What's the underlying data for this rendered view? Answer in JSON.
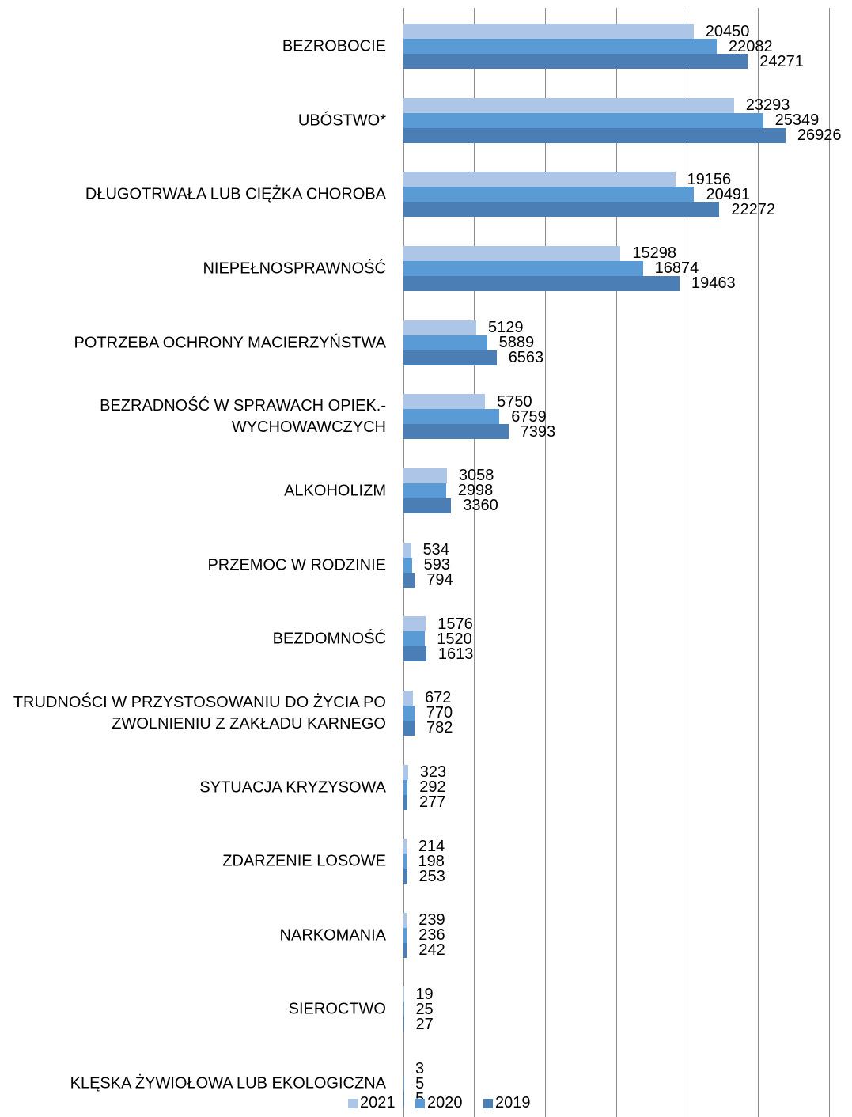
{
  "chart_data": {
    "type": "hbar",
    "categories": [
      "BEZROBOCIE",
      "UBÓSTWO*",
      "DŁUGOTRWAŁA LUB CIĘŻKA CHOROBA",
      "NIEPEŁNOSPRAWNOŚĆ",
      "POTRZEBA OCHRONY MACIERZYŃSTWA",
      "BEZRADNOŚĆ W SPRAWACH OPIEK.-WYCHOWAWCZYCH",
      "ALKOHOLIZM",
      "PRZEMOC W RODZINIE",
      "BEZDOMNOŚĆ",
      "TRUDNOŚCI W PRZYSTOSOWANIU DO ŻYCIA PO ZWOLNIENIU Z ZAKŁADU KARNEGO",
      "SYTUACJA KRYZYSOWA",
      "ZDARZENIE LOSOWE",
      "NARKOMANIA",
      "SIEROCTWO",
      "KLĘSKA ŻYWIOŁOWA LUB EKOLOGICZNA"
    ],
    "series": [
      {
        "name": "2021",
        "color": "#adc5e7",
        "values": [
          20450,
          23293,
          19156,
          15298,
          5129,
          5750,
          3058,
          534,
          1576,
          672,
          323,
          214,
          239,
          19,
          3
        ]
      },
      {
        "name": "2020",
        "color": "#5b9bd5",
        "values": [
          22082,
          25349,
          20491,
          16874,
          5889,
          6759,
          2998,
          593,
          1520,
          770,
          292,
          198,
          236,
          25,
          5
        ]
      },
      {
        "name": "2019",
        "color": "#4a7eb5",
        "values": [
          24271,
          26926,
          22272,
          19463,
          6563,
          7393,
          3360,
          794,
          1613,
          782,
          277,
          253,
          242,
          27,
          5
        ]
      }
    ],
    "xlim": [
      0,
      30000
    ],
    "xticks": [
      0,
      5000,
      10000,
      15000,
      20000,
      25000,
      30000
    ],
    "grid": true,
    "legend": "bottom"
  }
}
